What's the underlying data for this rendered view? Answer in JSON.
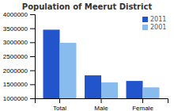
{
  "chart_data": {
    "type": "bar",
    "title": "Population of Meerut District",
    "categories": [
      "Total",
      "Male",
      "Female"
    ],
    "series": [
      {
        "name": "2011",
        "color": "#2255cc",
        "values": [
          3450000,
          1820000,
          1620000
        ]
      },
      {
        "name": "2001",
        "color": "#88bbee",
        "values": [
          2980000,
          1570000,
          1390000
        ]
      }
    ],
    "ylim": [
      1000000,
      4000000
    ],
    "yticks": [
      1000000,
      1500000,
      2000000,
      2500000,
      3000000,
      3500000,
      4000000
    ],
    "grid": false,
    "legend": "upper right"
  }
}
